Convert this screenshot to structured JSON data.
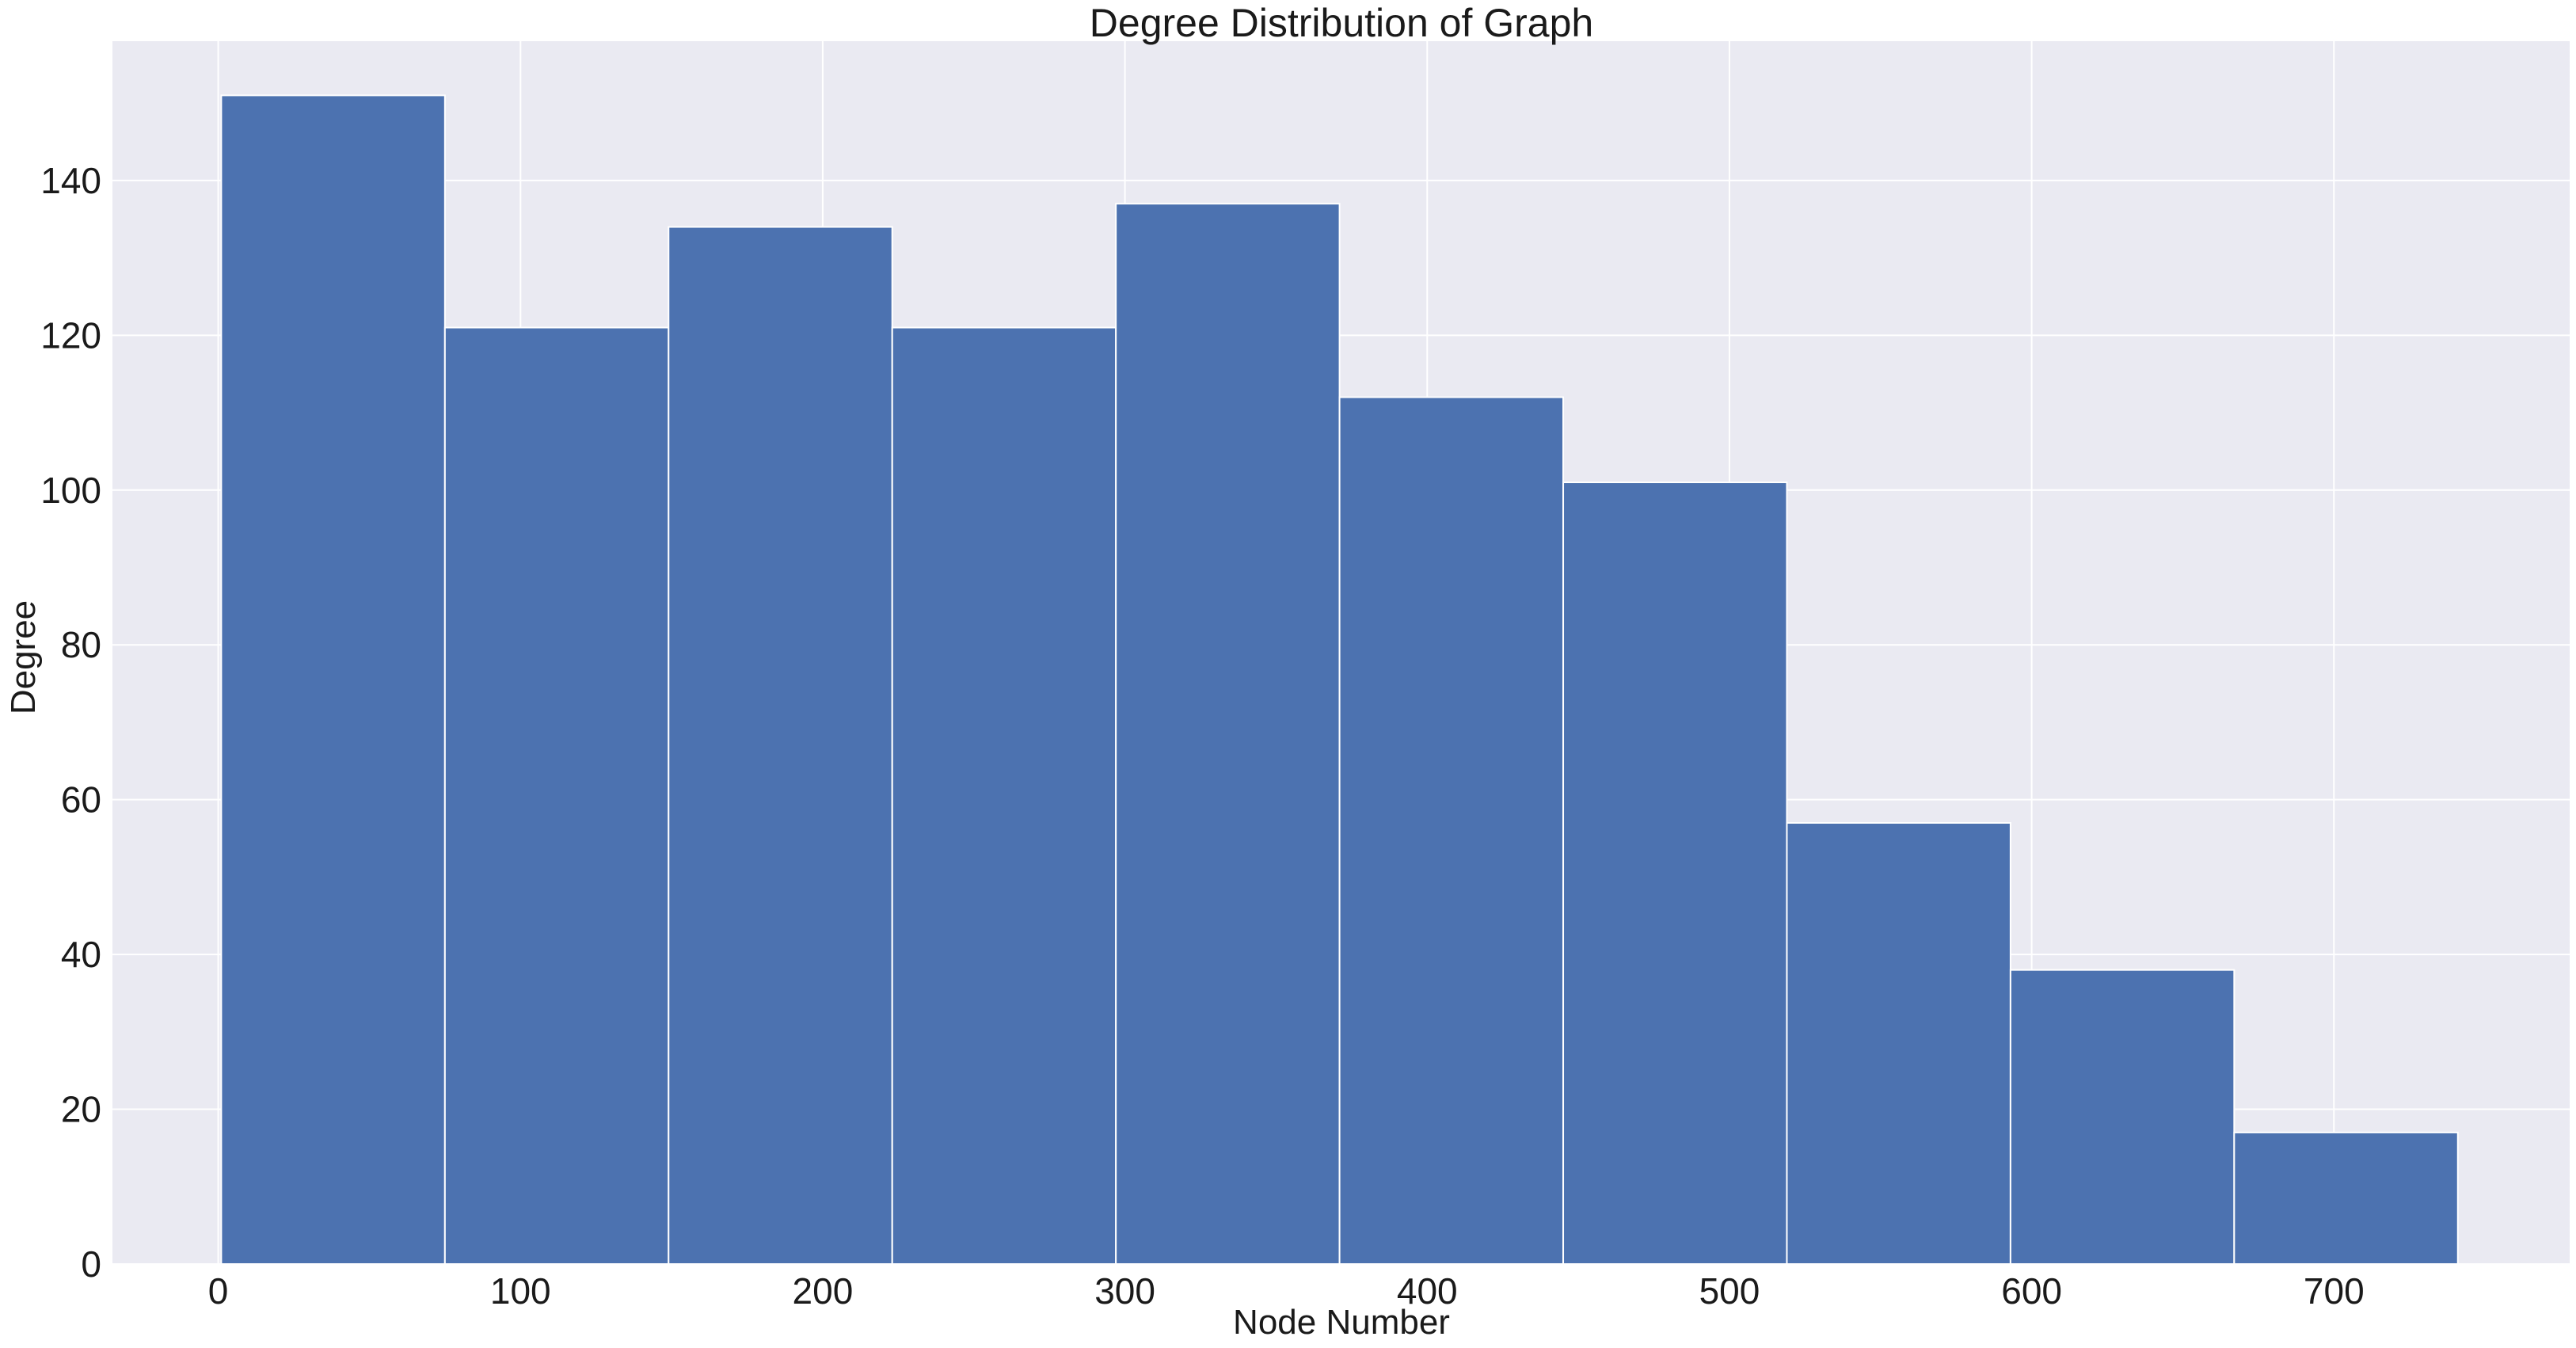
{
  "chart_data": {
    "type": "bar",
    "histogram": true,
    "title": "Degree Distribution of Graph",
    "xlabel": "Node Number",
    "ylabel": "Degree",
    "xlim": [
      -35,
      778
    ],
    "ylim": [
      0,
      158
    ],
    "grid": true,
    "xticks": [
      0,
      100,
      200,
      300,
      400,
      500,
      600,
      700
    ],
    "yticks": [
      0,
      20,
      40,
      60,
      80,
      100,
      120,
      140
    ],
    "bins": [
      {
        "x0": 1,
        "x1": 75,
        "value": 151
      },
      {
        "x0": 75,
        "x1": 149,
        "value": 121
      },
      {
        "x0": 149,
        "x1": 223,
        "value": 134
      },
      {
        "x0": 223,
        "x1": 297,
        "value": 121
      },
      {
        "x0": 297,
        "x1": 371,
        "value": 137
      },
      {
        "x0": 371,
        "x1": 445,
        "value": 112
      },
      {
        "x0": 445,
        "x1": 519,
        "value": 101
      },
      {
        "x0": 519,
        "x1": 593,
        "value": 57
      },
      {
        "x0": 593,
        "x1": 667,
        "value": 38
      },
      {
        "x0": 667,
        "x1": 741,
        "value": 17
      }
    ],
    "colors": {
      "bar": "#4c72b0",
      "plot_background": "#eaeaf2",
      "grid": "#ffffff"
    }
  }
}
